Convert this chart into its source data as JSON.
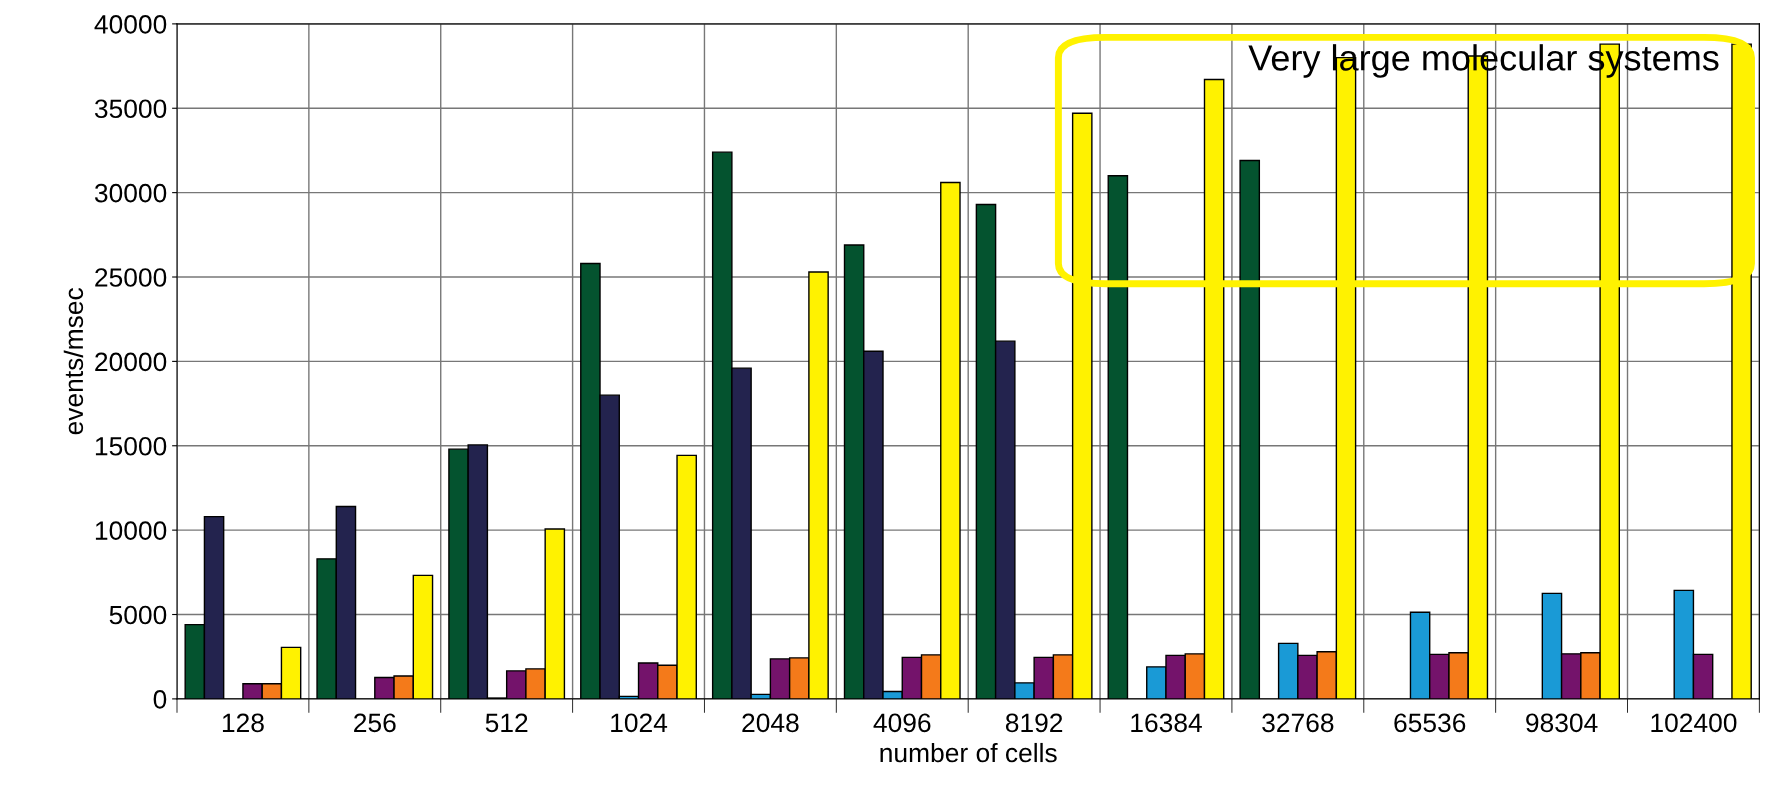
{
  "chart_data": {
    "type": "bar",
    "xlabel": "number of cells",
    "ylabel": "events/msec",
    "categories": [
      "128",
      "256",
      "512",
      "1024",
      "2048",
      "4096",
      "8192",
      "16384",
      "32768",
      "65536",
      "98304",
      "102400"
    ],
    "series": [
      {
        "color": "#04532f",
        "values": [
          4400,
          8300,
          14800,
          25800,
          32400,
          26900,
          29300,
          31000,
          31900,
          null,
          null,
          null
        ]
      },
      {
        "color": "#23234e",
        "values": [
          10800,
          11400,
          15050,
          18000,
          19600,
          20600,
          21200,
          null,
          null,
          null,
          null,
          null
        ]
      },
      {
        "color": "#1a9ad6",
        "values": [
          null,
          null,
          50,
          150,
          270,
          440,
          950,
          1900,
          3290,
          5130,
          6250,
          6430
        ]
      },
      {
        "color": "#74136b",
        "values": [
          900,
          1270,
          1660,
          2130,
          2370,
          2460,
          2460,
          2580,
          2580,
          2640,
          2670,
          2640
        ]
      },
      {
        "color": "#f47a1a",
        "values": [
          900,
          1360,
          1780,
          1990,
          2430,
          2610,
          2610,
          2670,
          2790,
          2730,
          2730,
          null
        ]
      },
      {
        "color": "#fff200",
        "values": [
          3050,
          7320,
          10070,
          14430,
          25300,
          30600,
          34700,
          36700,
          38000,
          38100,
          38800,
          38800
        ]
      }
    ],
    "ylim": [
      0,
      40000
    ],
    "yticks": [
      0,
      5000,
      10000,
      15000,
      20000,
      25000,
      30000,
      35000,
      40000
    ],
    "grid": true,
    "annotations": [
      "Very large molecular systems"
    ]
  }
}
